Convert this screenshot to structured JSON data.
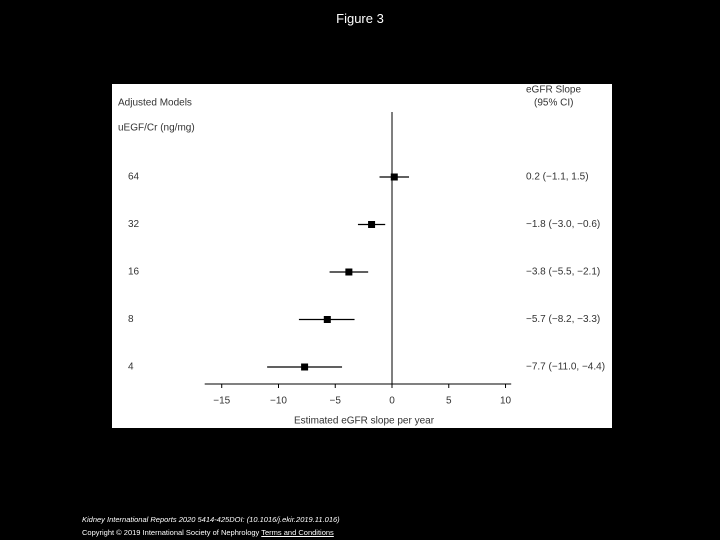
{
  "page": {
    "title": "Figure 3"
  },
  "chart_data": {
    "type": "forest",
    "header": "Adjusted Models",
    "group_label": "uEGF/Cr (ng/mg)",
    "value_header": [
      "eGFR Slope",
      "(95% CI)"
    ],
    "categories": [
      "64",
      "32",
      "16",
      "8",
      "4"
    ],
    "values": [
      0.2,
      -1.8,
      -3.8,
      -5.7,
      -7.7
    ],
    "lower": [
      -1.1,
      -3.0,
      -5.5,
      -8.2,
      -11.0
    ],
    "upper": [
      1.5,
      -0.6,
      -2.1,
      -3.3,
      -4.4
    ],
    "value_labels": [
      "0.2 (−1.1, 1.5)",
      "−1.8 (−3.0, −0.6)",
      "−3.8 (−5.5, −2.1)",
      "−5.7 (−8.2, −3.3)",
      "−7.7 (−11.0, −4.4)"
    ],
    "xlabel": "Estimated eGFR slope per year",
    "xlim": [
      -16.5,
      10.5
    ],
    "xticks": [
      {
        "value": -15,
        "label": "−15"
      },
      {
        "value": -10,
        "label": "−10"
      },
      {
        "value": -5,
        "label": "−5"
      },
      0,
      5,
      10
    ],
    "reference_line": 0,
    "color": "#000000"
  },
  "footer": {
    "citation": "Kidney International Reports 2020 5414-425DOI: (10.1016/j.ekir.2019.11.016)",
    "copyright": "Copyright © 2019 International Society of Nephrology",
    "link": "Terms and Conditions"
  }
}
